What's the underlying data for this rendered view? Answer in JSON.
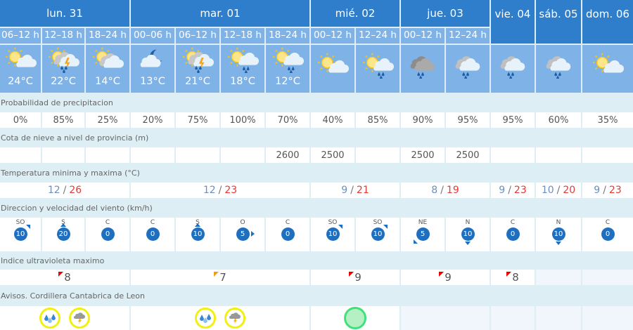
{
  "colors": {
    "day_header": "#2f7ecb",
    "sub_header": "#7fb3e8",
    "label_bg": "#ddeef5",
    "temp_max": "#e53935",
    "temp_min": "#6a8fbf",
    "wind_badge": "#1f6fc0",
    "uv_high": "#e00000",
    "uv_mid": "#f39c12",
    "warning_yellow": "#f3ef12",
    "warning_green": "#3fe27a"
  },
  "days": [
    {
      "label": "lun. 31",
      "span": 3
    },
    {
      "label": "mar. 01",
      "span": 4
    },
    {
      "label": "mié. 02",
      "span": 2
    },
    {
      "label": "jue. 03",
      "span": 2
    },
    {
      "label": "vie. 04",
      "span": 1
    },
    {
      "label": "sáb. 05",
      "span": 1
    },
    {
      "label": "dom. 06",
      "span": 1
    }
  ],
  "periods": [
    {
      "label": "06–12 h",
      "icon": "sun-cloud",
      "temp": "24°C"
    },
    {
      "label": "12–18 h",
      "icon": "storm",
      "temp": "22°C"
    },
    {
      "label": "18–24 h",
      "icon": "sun-clouds",
      "temp": "14°C"
    },
    {
      "label": "00–06 h",
      "icon": "moon-cloud",
      "temp": "13°C"
    },
    {
      "label": "06–12 h",
      "icon": "storm",
      "temp": "21°C"
    },
    {
      "label": "12–18 h",
      "icon": "sun-rain",
      "temp": "18°C"
    },
    {
      "label": "18–24 h",
      "icon": "sun-rain",
      "temp": "12°C"
    },
    {
      "label": "00–12 h",
      "icon": "sun-cloud",
      "temp": ""
    },
    {
      "label": "12–24 h",
      "icon": "sun-rain-light",
      "temp": ""
    },
    {
      "label": "00–12 h",
      "icon": "dark-rain",
      "temp": ""
    },
    {
      "label": "12–24 h",
      "icon": "rain",
      "temp": ""
    },
    {
      "label": "",
      "icon": "rain",
      "temp": ""
    },
    {
      "label": "",
      "icon": "cloud-rain-light",
      "temp": ""
    },
    {
      "label": "",
      "icon": "sun-cloud",
      "temp": ""
    }
  ],
  "precip": {
    "label": "Probabilidad de precipitacion",
    "values": [
      "0%",
      "85%",
      "25%",
      "20%",
      "75%",
      "100%",
      "70%",
      "40%",
      "85%",
      "90%",
      "95%",
      "95%",
      "60%",
      "35%"
    ]
  },
  "snow": {
    "label": "Cota de nieve a nivel de provincia (m)",
    "values": [
      "",
      "",
      "",
      "",
      "",
      "",
      "2600",
      "2500",
      "",
      "2500",
      "2500",
      "",
      "",
      ""
    ]
  },
  "temps": {
    "label": "Temperatura minima y maxima (°C)",
    "sep": "/",
    "values": [
      {
        "min": "12",
        "max": "26"
      },
      {
        "min": "12",
        "max": "23"
      },
      {
        "min": "9",
        "max": "21"
      },
      {
        "min": "8",
        "max": "19"
      },
      {
        "min": "9",
        "max": "23"
      },
      {
        "min": "10",
        "max": "20"
      },
      {
        "min": "9",
        "max": "23"
      }
    ]
  },
  "wind": {
    "label": "Direccion y velocidad del viento (km/h)",
    "values": [
      {
        "dir": "SO",
        "speed": "10"
      },
      {
        "dir": "S",
        "speed": "20"
      },
      {
        "dir": "C",
        "speed": "0"
      },
      {
        "dir": "C",
        "speed": "0"
      },
      {
        "dir": "S",
        "speed": "10"
      },
      {
        "dir": "O",
        "speed": "5"
      },
      {
        "dir": "C",
        "speed": "0"
      },
      {
        "dir": "SO",
        "speed": "10"
      },
      {
        "dir": "SO",
        "speed": "10"
      },
      {
        "dir": "NE",
        "speed": "5"
      },
      {
        "dir": "N",
        "speed": "10"
      },
      {
        "dir": "C",
        "speed": "0"
      },
      {
        "dir": "N",
        "speed": "10"
      },
      {
        "dir": "C",
        "speed": "0"
      }
    ]
  },
  "uv": {
    "label": "Indice ultravioleta maximo",
    "values": [
      {
        "value": "8",
        "level": "high"
      },
      {
        "value": "7",
        "level": "mid"
      },
      {
        "value": "9",
        "level": "high"
      },
      {
        "value": "9",
        "level": "high"
      },
      {
        "value": "8",
        "level": "high"
      },
      {
        "value": "",
        "level": ""
      },
      {
        "value": "",
        "level": ""
      }
    ]
  },
  "warnings": {
    "label": "Avisos. Cordillera Cantabrica de Leon",
    "values": [
      [
        "rain-warning-icon",
        "storm-warning-icon"
      ],
      [
        "rain-warning-icon",
        "storm-warning-icon"
      ],
      [
        "no-warning-icon"
      ],
      [],
      [],
      [],
      []
    ]
  }
}
